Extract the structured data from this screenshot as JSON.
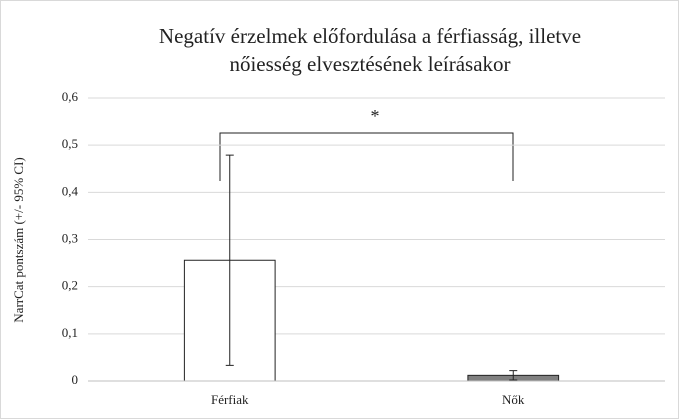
{
  "chart_data": {
    "type": "bar",
    "title": [
      "Negatív érzelmek előfordulása a férfiasság, illetve",
      "nőiesség elvesztésének leírásakor"
    ],
    "ylabel": "NarrCat pontszám (+/- 95% CI)",
    "categories": [
      "Férfiak",
      "Nők"
    ],
    "values": [
      0.256,
      0.012
    ],
    "errors": [
      0.223,
      0.01
    ],
    "colors": [
      "#ffffff",
      "#808080"
    ],
    "annotation": "*",
    "ylim": [
      0,
      0.6
    ],
    "yticks": [
      0,
      {
        "value": 0.1,
        "label": "0,1"
      },
      {
        "value": 0.2,
        "label": "0,2"
      },
      {
        "value": 0.3,
        "label": "0,3"
      },
      {
        "value": 0.4,
        "label": "0,4"
      },
      {
        "value": 0.5,
        "label": "0,5"
      },
      {
        "value": 0.6,
        "label": "0,6"
      }
    ],
    "grid": true
  }
}
